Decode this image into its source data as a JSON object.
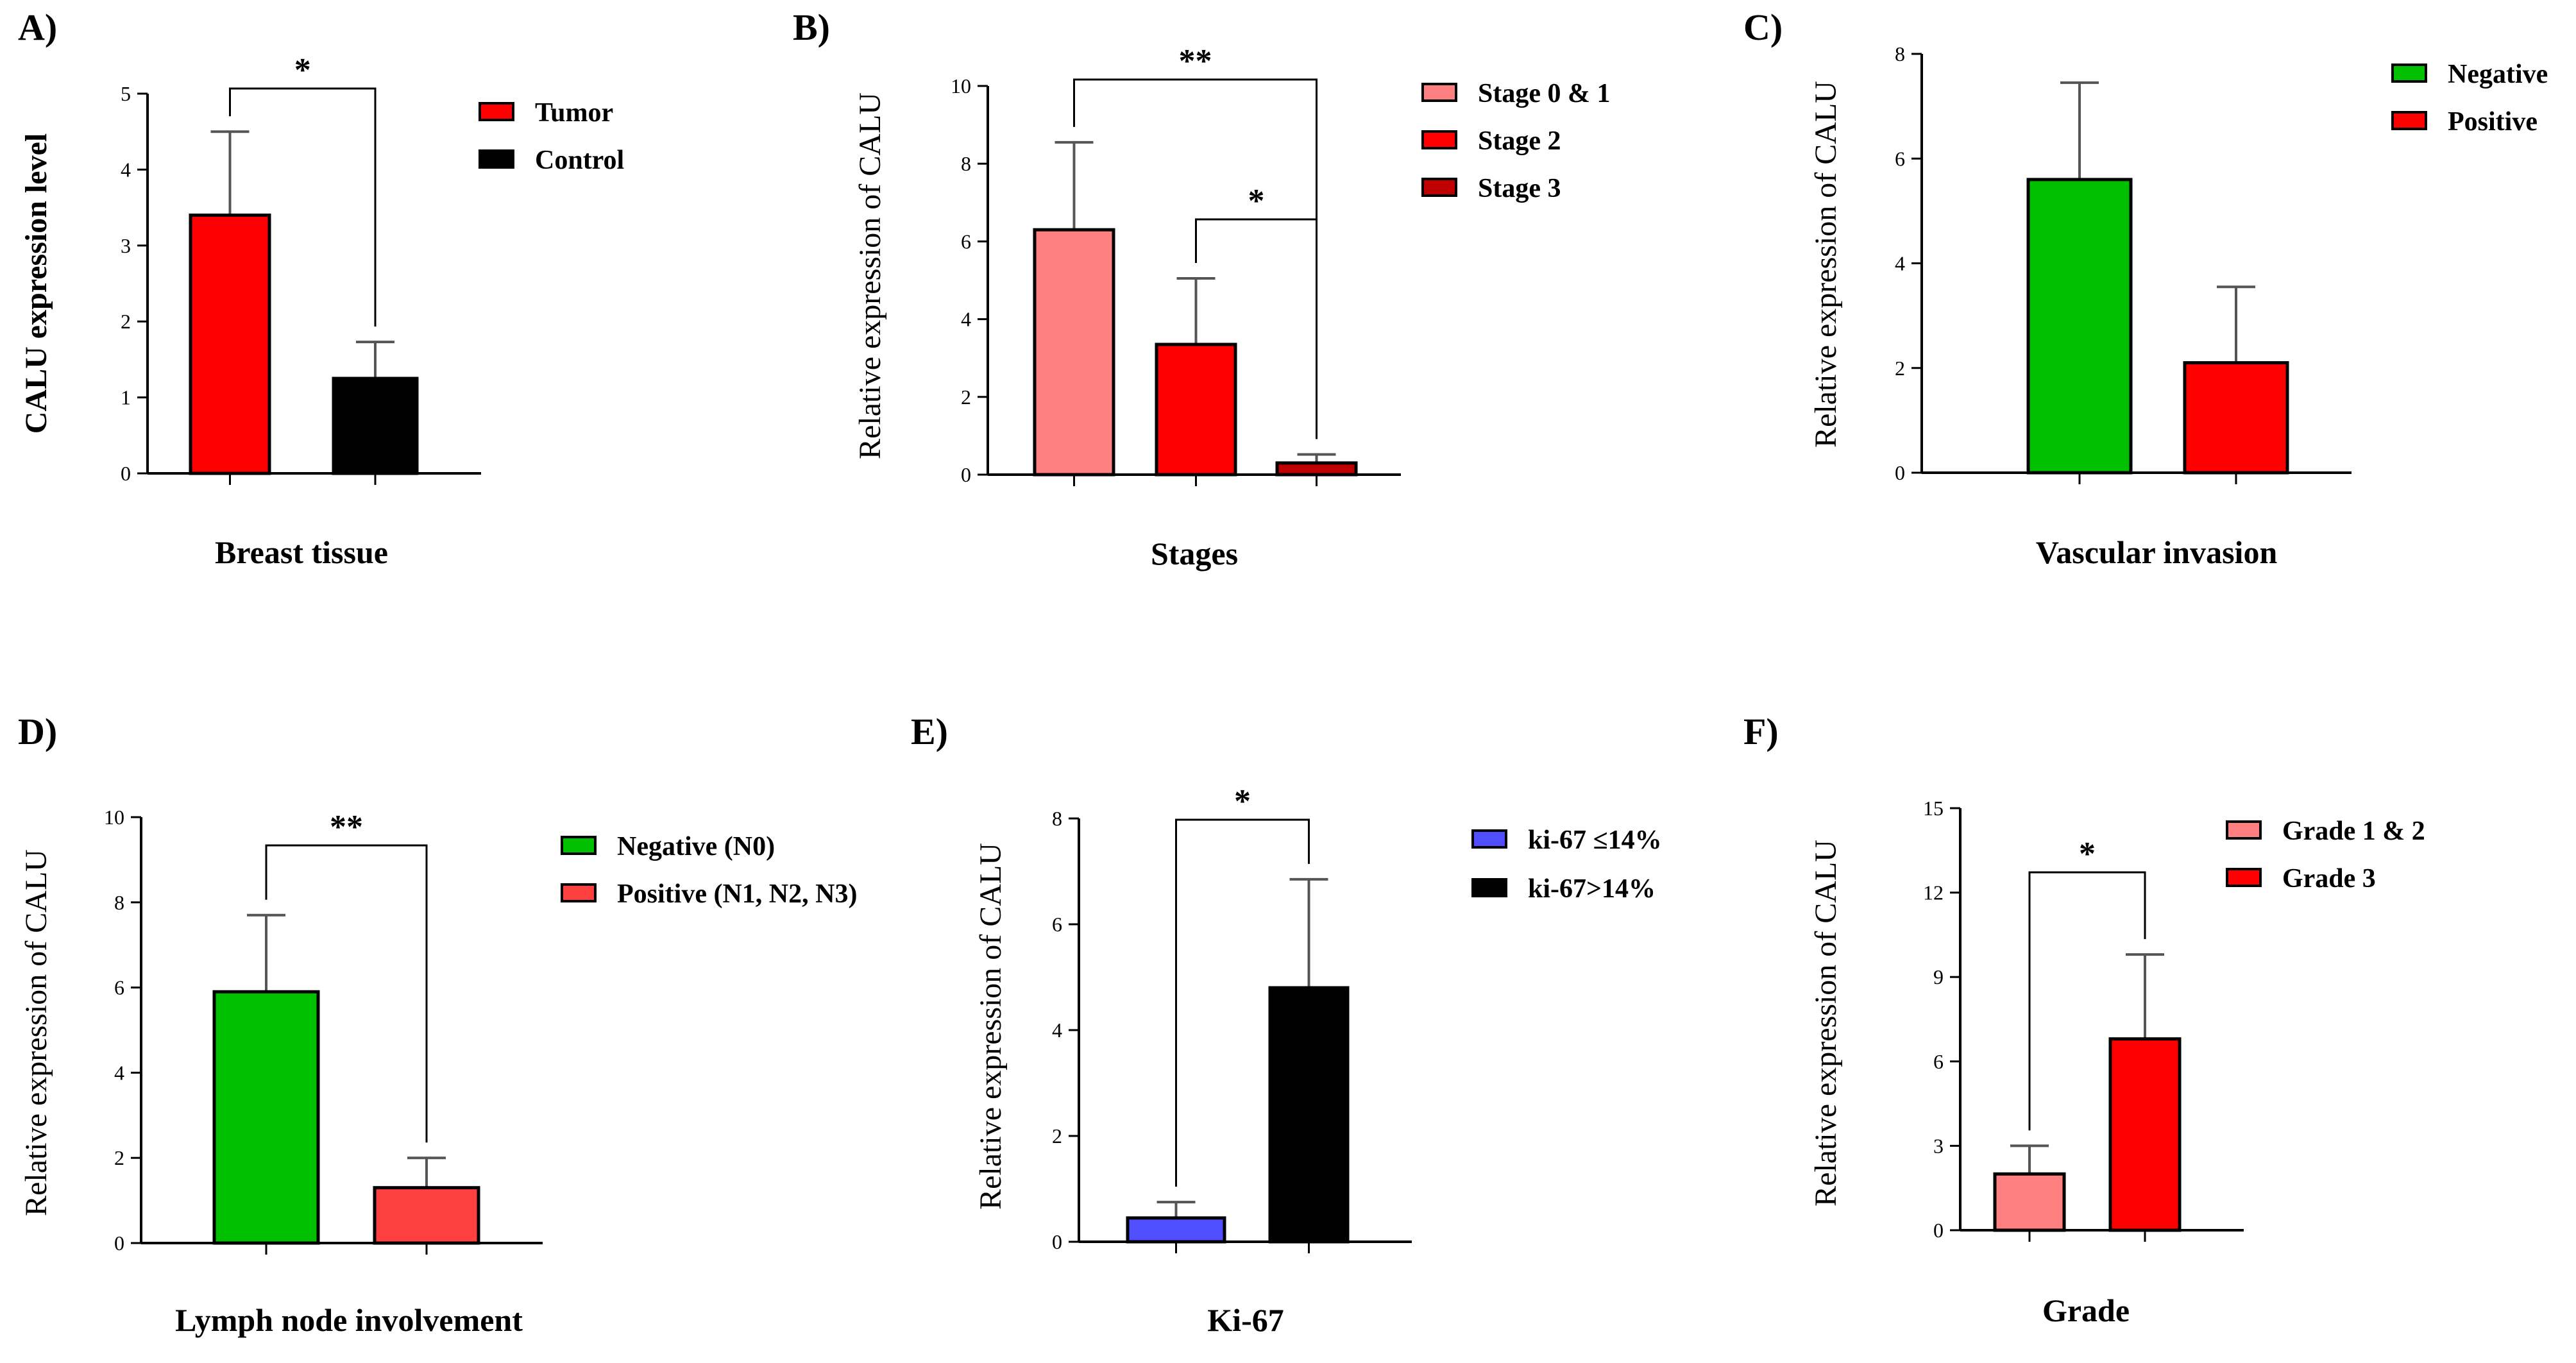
{
  "chart_data": [
    {
      "type": "bar",
      "panel": "A)",
      "categories": [
        "Tumor",
        "Control"
      ],
      "values": [
        3.4,
        1.25
      ],
      "errors": [
        1.1,
        0.48
      ],
      "colors": [
        "#ff0000",
        "#000000"
      ],
      "xlabel": "Breast tissue",
      "ylabel": "CALU expression level",
      "ylim": [
        0,
        5
      ],
      "yticks": [
        "0",
        "1",
        "2",
        "3",
        "4",
        "5"
      ],
      "legend": [
        "Tumor",
        "Control"
      ],
      "legend_position": "top-right",
      "significance": [
        {
          "from": 0,
          "to": 1,
          "label": "*"
        }
      ]
    },
    {
      "type": "bar",
      "panel": "B)",
      "categories": [
        "Stage 0 & 1",
        "Stage 2",
        "Stage 3"
      ],
      "values": [
        6.3,
        3.35,
        0.3
      ],
      "errors": [
        2.25,
        1.7,
        0.22
      ],
      "colors": [
        "#ff8080",
        "#ff0000",
        "#c00000"
      ],
      "xlabel": "Stages",
      "ylabel": "Relative expression of CALU",
      "ylim": [
        0,
        10
      ],
      "yticks": [
        "0",
        "2",
        "4",
        "6",
        "8",
        "10"
      ],
      "legend": [
        "Stage 0 & 1",
        "Stage 2",
        "Stage 3"
      ],
      "legend_position": "top-right",
      "significance": [
        {
          "from": 0,
          "to": 2,
          "label": "**"
        },
        {
          "from": 1,
          "to": 2,
          "label": "*"
        }
      ]
    },
    {
      "type": "bar",
      "panel": "C)",
      "categories": [
        "Negative",
        "Positive"
      ],
      "values": [
        5.6,
        2.1
      ],
      "errors": [
        1.85,
        1.45
      ],
      "colors": [
        "#00c000",
        "#ff0000"
      ],
      "xlabel": "Vascular invasion",
      "ylabel": "Relative expression of CALU",
      "ylim": [
        0,
        8
      ],
      "yticks": [
        "0",
        "2",
        "4",
        "6",
        "8"
      ],
      "legend": [
        "Negative",
        "Positive"
      ],
      "legend_position": "top-right",
      "significance": []
    },
    {
      "type": "bar",
      "panel": "D)",
      "categories": [
        "Negative (N0)",
        "Positive (N1, N2, N3)"
      ],
      "values": [
        5.9,
        1.3
      ],
      "errors": [
        1.8,
        0.7
      ],
      "colors": [
        "#00c000",
        "#ff4040"
      ],
      "xlabel": "Lymph node involvement",
      "ylabel": "Relative expression of CALU",
      "ylim": [
        0,
        10
      ],
      "yticks": [
        "0",
        "2",
        "4",
        "6",
        "8",
        "10"
      ],
      "legend": [
        "Negative (N0)",
        "Positive (N1, N2, N3)"
      ],
      "legend_position": "top-right",
      "significance": [
        {
          "from": 0,
          "to": 1,
          "label": "**"
        }
      ]
    },
    {
      "type": "bar",
      "panel": "E)",
      "categories": [
        "ki-67 ≤14%",
        "ki-67>14%"
      ],
      "values": [
        0.45,
        4.8
      ],
      "errors": [
        0.3,
        2.05
      ],
      "colors": [
        "#4f4fff",
        "#000000"
      ],
      "xlabel": "Ki-67",
      "ylabel": "Relative expression of CALU",
      "ylim": [
        0,
        8
      ],
      "yticks": [
        "0",
        "2",
        "4",
        "6",
        "8"
      ],
      "legend": [
        "ki-67 ≤14%",
        "ki-67>14%"
      ],
      "legend_position": "top-right",
      "significance": [
        {
          "from": 0,
          "to": 1,
          "label": "*"
        }
      ]
    },
    {
      "type": "bar",
      "panel": "F)",
      "categories": [
        "Grade 1 & 2",
        "Grade 3"
      ],
      "values": [
        2.0,
        6.8
      ],
      "errors": [
        1.0,
        3.0
      ],
      "colors": [
        "#ff8080",
        "#ff0000"
      ],
      "xlabel": "Grade",
      "ylabel": "Relative expression of CALU",
      "ylim": [
        0,
        15
      ],
      "yticks": [
        "0",
        "3",
        "6",
        "9",
        "12",
        "15"
      ],
      "legend": [
        "Grade 1 & 2",
        "Grade 3"
      ],
      "legend_position": "top-right",
      "significance": [
        {
          "from": 0,
          "to": 1,
          "label": "*"
        }
      ]
    }
  ]
}
